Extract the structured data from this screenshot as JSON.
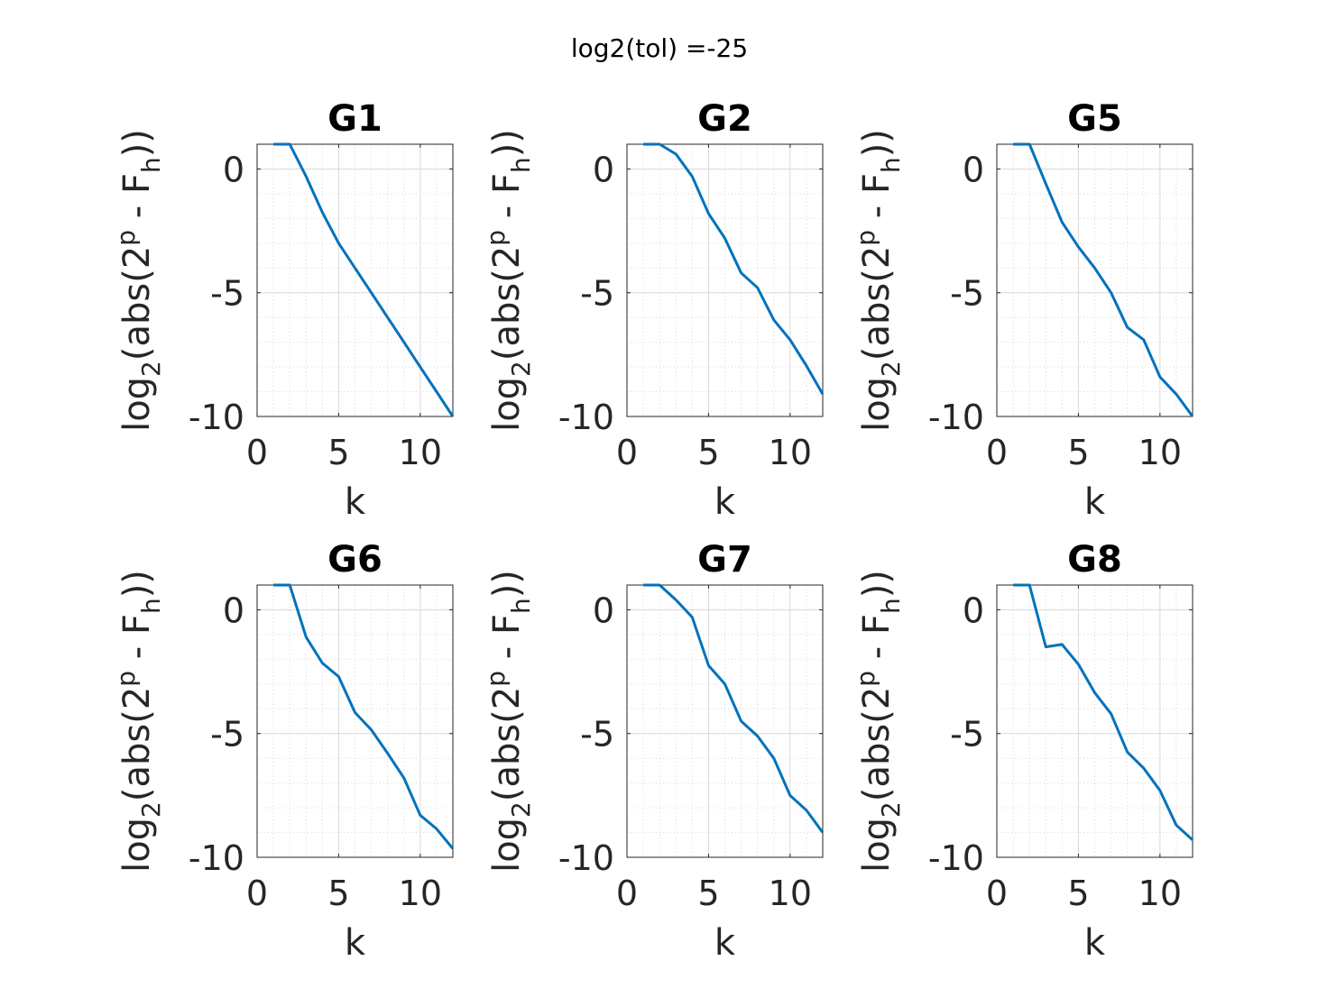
{
  "figure": {
    "suptitle": "log2(tol) =-25",
    "line_color": "#0072BD",
    "axes_color": "#262626",
    "grid_color": "#d9d9d9"
  },
  "chart_data": [
    {
      "type": "line",
      "title": "G1",
      "xlabel": "k",
      "ylabel": {
        "prefix": "log",
        "sub1": "2",
        "mid1": "(abs(2",
        "sup": "p",
        "mid2": " - F",
        "sub2": "h",
        "suffix": "))"
      },
      "xlim": [
        0,
        12
      ],
      "ylim": [
        -10,
        1
      ],
      "xticks": [
        "0",
        "5",
        "10"
      ],
      "yticks": [
        "0",
        "-5",
        "-10"
      ],
      "grid": true,
      "x": [
        1,
        2,
        3,
        4,
        5,
        6,
        7,
        8,
        9,
        10,
        11,
        12
      ],
      "y": [
        1,
        1,
        -0.3,
        -1.75,
        -3.0,
        -4.0,
        -5.0,
        -6.0,
        -7.0,
        -8.0,
        -9.0,
        -10.0
      ]
    },
    {
      "type": "line",
      "title": "G2",
      "xlabel": "k",
      "ylabel": {
        "prefix": "log",
        "sub1": "2",
        "mid1": "(abs(2",
        "sup": "p",
        "mid2": " - F",
        "sub2": "h",
        "suffix": "))"
      },
      "xlim": [
        0,
        12
      ],
      "ylim": [
        -10,
        1
      ],
      "xticks": [
        "0",
        "5",
        "10"
      ],
      "yticks": [
        "0",
        "-5",
        "-10"
      ],
      "grid": true,
      "x": [
        1,
        2,
        3,
        4,
        5,
        6,
        7,
        8,
        9,
        10,
        11,
        12
      ],
      "y": [
        1,
        1,
        0.6,
        -0.3,
        -1.8,
        -2.8,
        -4.2,
        -4.8,
        -6.1,
        -6.9,
        -7.95,
        -9.1
      ]
    },
    {
      "type": "line",
      "title": "G5",
      "xlabel": "k",
      "ylabel": {
        "prefix": "log",
        "sub1": "2",
        "mid1": "(abs(2",
        "sup": "p",
        "mid2": " - F",
        "sub2": "h",
        "suffix": "))"
      },
      "xlim": [
        0,
        12
      ],
      "ylim": [
        -10,
        1
      ],
      "xticks": [
        "0",
        "5",
        "10"
      ],
      "yticks": [
        "0",
        "-5",
        "-10"
      ],
      "grid": true,
      "x": [
        1,
        2,
        3,
        4,
        5,
        6,
        7,
        8,
        9,
        10,
        11,
        12
      ],
      "y": [
        1,
        1,
        -0.6,
        -2.15,
        -3.15,
        -4.0,
        -5.0,
        -6.4,
        -6.9,
        -8.4,
        -9.1,
        -10.0
      ]
    },
    {
      "type": "line",
      "title": "G6",
      "xlabel": "k",
      "ylabel": {
        "prefix": "log",
        "sub1": "2",
        "mid1": "(abs(2",
        "sup": "p",
        "mid2": " - F",
        "sub2": "h",
        "suffix": "))"
      },
      "xlim": [
        0,
        12
      ],
      "ylim": [
        -10,
        1
      ],
      "xticks": [
        "0",
        "5",
        "10"
      ],
      "yticks": [
        "0",
        "-5",
        "-10"
      ],
      "grid": true,
      "x": [
        1,
        2,
        3,
        4,
        5,
        6,
        7,
        8,
        9,
        10,
        11,
        12
      ],
      "y": [
        1,
        1,
        -1.1,
        -2.15,
        -2.7,
        -4.15,
        -4.85,
        -5.8,
        -6.8,
        -8.3,
        -8.85,
        -9.65
      ]
    },
    {
      "type": "line",
      "title": "G7",
      "xlabel": "k",
      "ylabel": {
        "prefix": "log",
        "sub1": "2",
        "mid1": "(abs(2",
        "sup": "p",
        "mid2": " - F",
        "sub2": "h",
        "suffix": "))"
      },
      "xlim": [
        0,
        12
      ],
      "ylim": [
        -10,
        1
      ],
      "xticks": [
        "0",
        "5",
        "10"
      ],
      "yticks": [
        "0",
        "-5",
        "-10"
      ],
      "grid": true,
      "x": [
        1,
        2,
        3,
        4,
        5,
        6,
        7,
        8,
        9,
        10,
        11,
        12
      ],
      "y": [
        1,
        1,
        0.4,
        -0.3,
        -2.25,
        -3.0,
        -4.5,
        -5.1,
        -6.0,
        -7.5,
        -8.1,
        -9.0
      ]
    },
    {
      "type": "line",
      "title": "G8",
      "xlabel": "k",
      "ylabel": {
        "prefix": "log",
        "sub1": "2",
        "mid1": "(abs(2",
        "sup": "p",
        "mid2": " - F",
        "sub2": "h",
        "suffix": "))"
      },
      "xlim": [
        0,
        12
      ],
      "ylim": [
        -10,
        1
      ],
      "xticks": [
        "0",
        "5",
        "10"
      ],
      "yticks": [
        "0",
        "-5",
        "-10"
      ],
      "grid": true,
      "x": [
        1,
        2,
        3,
        4,
        5,
        6,
        7,
        8,
        9,
        10,
        11,
        12
      ],
      "y": [
        1,
        1,
        -1.5,
        -1.4,
        -2.2,
        -3.35,
        -4.2,
        -5.75,
        -6.4,
        -7.3,
        -8.7,
        -9.3
      ]
    }
  ]
}
